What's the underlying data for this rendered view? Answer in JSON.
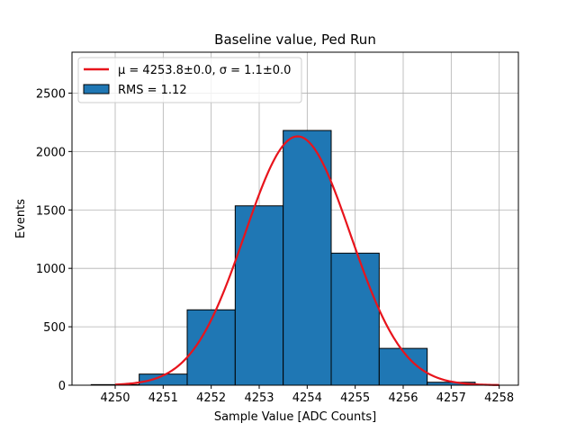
{
  "chart_data": {
    "type": "bar",
    "title": "Baseline value, Ped Run",
    "xlabel": "Sample Value [ADC Counts]",
    "ylabel": "Events",
    "xlim": [
      4249.1,
      4258.4
    ],
    "ylim": [
      0,
      2850
    ],
    "grid": true,
    "legend_position": "top-left",
    "x_ticks": [
      4250,
      4251,
      4252,
      4253,
      4254,
      4255,
      4256,
      4257,
      4258
    ],
    "y_ticks": [
      0,
      500,
      1000,
      1500,
      2000,
      2500
    ],
    "bins": {
      "edges": [
        4249.5,
        4250.5,
        4251.5,
        4252.5,
        4253.5,
        4254.5,
        4255.5,
        4256.5,
        4257.5
      ],
      "values": [
        5,
        95,
        645,
        1535,
        2180,
        1130,
        315,
        25
      ],
      "color": "#1f77b4",
      "edge_color": "#000000",
      "legend": "RMS = 1.12"
    },
    "fit": {
      "type": "gaussian",
      "mu": 4253.8,
      "sigma": 1.1,
      "amplitude": 2130,
      "x_range": [
        4250,
        4258
      ],
      "color": "#e8141c",
      "legend_mu_label": "μ = 4253.8±0.0, ",
      "legend_sigma_label": "σ = 1.1±0.0"
    }
  }
}
